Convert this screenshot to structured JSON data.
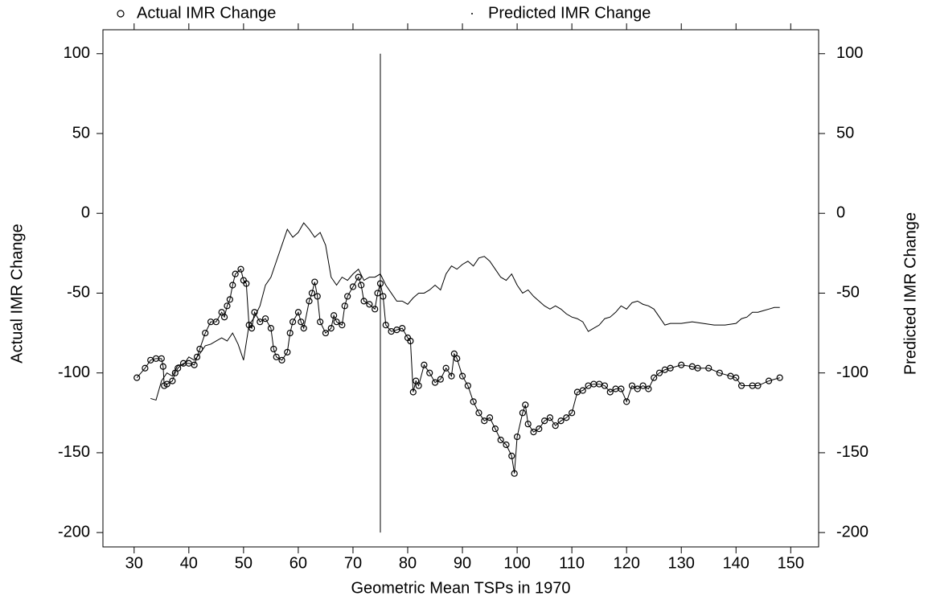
{
  "chart_data": {
    "type": "line",
    "x_label": "Geometric Mean TSPs in 1970",
    "y_label": "Actual IMR Change",
    "y2_label": "Predicted IMR Change",
    "xlim": [
      24.3,
      155.1
    ],
    "ylim": [
      -209,
      115
    ],
    "y2lim": [
      -209,
      115
    ],
    "xticks": [
      30,
      40,
      50,
      60,
      70,
      80,
      90,
      100,
      110,
      120,
      130,
      140,
      150
    ],
    "yticks": [
      -200,
      -150,
      -100,
      -50,
      0,
      50,
      100
    ],
    "y2ticks": [
      -200,
      -150,
      -100,
      -50,
      0,
      50,
      100
    ],
    "reference_line": {
      "x": 75,
      "ymin": -200,
      "ymax": 100
    },
    "series": [
      {
        "name": "Actual IMR Change",
        "color": "#000000",
        "marker": "circle",
        "axis": "y",
        "x": [
          30.5,
          32,
          33,
          34,
          35,
          35.3,
          35.5,
          36,
          37,
          37.5,
          38,
          39,
          40,
          41,
          41.5,
          42,
          43,
          44,
          45,
          46,
          46.5,
          47,
          47.5,
          48,
          48.5,
          49.5,
          50,
          50.5,
          51,
          51.5,
          52,
          53,
          54,
          55,
          55.5,
          56,
          57,
          58,
          58.5,
          59,
          60,
          60.5,
          61,
          62,
          62.5,
          63,
          63.5,
          64,
          65,
          66,
          66.5,
          67,
          68,
          68.5,
          69,
          70,
          71,
          71.5,
          72,
          73,
          74,
          74.5,
          75,
          75.5,
          76,
          77,
          78,
          79,
          80,
          80.5,
          81,
          81.5,
          82,
          83,
          84,
          85,
          86,
          87,
          88,
          88.5,
          89,
          90,
          91,
          92,
          93,
          94,
          95,
          96,
          97,
          98,
          99,
          99.5,
          100,
          101,
          101.5,
          102,
          103,
          104,
          105,
          106,
          107,
          108,
          109,
          110,
          111,
          112,
          113,
          114,
          115,
          116,
          117,
          118,
          119,
          120,
          121,
          122,
          123,
          124,
          125,
          126,
          127,
          128,
          130,
          132,
          133,
          135,
          137,
          139,
          140,
          141,
          143,
          144,
          146,
          148
        ],
        "values": [
          -103,
          -97,
          -92,
          -91,
          -91,
          -96,
          -108,
          -107,
          -105,
          -100,
          -97,
          -94,
          -94,
          -95,
          -90,
          -85,
          -75,
          -68,
          -68,
          -62,
          -65,
          -58,
          -54,
          -45,
          -38,
          -35,
          -42,
          -44,
          -70,
          -72,
          -62,
          -68,
          -66,
          -72,
          -85,
          -90,
          -92,
          -87,
          -75,
          -68,
          -62,
          -68,
          -72,
          -55,
          -50,
          -43,
          -52,
          -68,
          -75,
          -72,
          -64,
          -68,
          -70,
          -58,
          -52,
          -46,
          -40,
          -45,
          -55,
          -57,
          -60,
          -50,
          -44,
          -52,
          -70,
          -74,
          -73,
          -72,
          -78,
          -80,
          -112,
          -105,
          -108,
          -95,
          -100,
          -106,
          -104,
          -97,
          -102,
          -88,
          -91,
          -102,
          -108,
          -118,
          -125,
          -130,
          -128,
          -135,
          -142,
          -145,
          -152,
          -163,
          -140,
          -125,
          -120,
          -132,
          -137,
          -135,
          -130,
          -128,
          -133,
          -130,
          -128,
          -125,
          -112,
          -111,
          -108,
          -107,
          -107,
          -108,
          -112,
          -110,
          -110,
          -118,
          -108,
          -110,
          -108,
          -110,
          -103,
          -100,
          -98,
          -97,
          -95,
          -96,
          -97,
          -97,
          -100,
          -102,
          -103,
          -108,
          -108,
          -108,
          -105,
          -103
        ]
      },
      {
        "name": "Predicted IMR Change",
        "color": "#000000",
        "marker": "dot",
        "axis": "y2",
        "x": [
          33,
          34,
          35,
          36,
          37,
          38,
          39,
          40,
          41,
          42,
          43,
          44,
          45,
          46,
          47,
          48,
          49,
          50,
          51,
          52,
          53,
          54,
          55,
          56,
          57,
          58,
          59,
          60,
          61,
          62,
          63,
          64,
          65,
          66,
          67,
          68,
          69,
          70,
          71,
          72,
          73,
          74,
          75,
          76,
          77,
          78,
          79,
          80,
          81,
          82,
          83,
          84,
          85,
          86,
          87,
          88,
          89,
          90,
          91,
          92,
          93,
          94,
          95,
          96,
          97,
          98,
          99,
          100,
          101,
          102,
          103,
          104,
          105,
          106,
          107,
          108,
          109,
          110,
          111,
          112,
          113,
          114,
          115,
          116,
          117,
          118,
          119,
          120,
          121,
          122,
          123,
          124,
          125,
          126,
          127,
          128,
          130,
          132,
          134,
          136,
          138,
          140,
          141,
          142,
          143,
          144,
          145,
          146,
          147,
          148
        ],
        "values": [
          -116,
          -117,
          -105,
          -100,
          -102,
          -95,
          -95,
          -90,
          -92,
          -88,
          -83,
          -82,
          -80,
          -78,
          -80,
          -75,
          -82,
          -92,
          -70,
          -65,
          -58,
          -45,
          -40,
          -30,
          -20,
          -10,
          -15,
          -12,
          -6,
          -10,
          -15,
          -12,
          -20,
          -40,
          -45,
          -40,
          -42,
          -38,
          -35,
          -42,
          -40,
          -40,
          -38,
          -45,
          -50,
          -55,
          -55,
          -57,
          -53,
          -50,
          -50,
          -48,
          -45,
          -48,
          -38,
          -33,
          -35,
          -32,
          -30,
          -33,
          -28,
          -27,
          -30,
          -35,
          -40,
          -42,
          -38,
          -45,
          -50,
          -48,
          -52,
          -55,
          -58,
          -60,
          -58,
          -60,
          -63,
          -65,
          -66,
          -68,
          -74,
          -72,
          -70,
          -66,
          -65,
          -62,
          -58,
          -60,
          -56,
          -55,
          -57,
          -58,
          -60,
          -65,
          -70,
          -69,
          -69,
          -68,
          -69,
          -70,
          -70,
          -69,
          -66,
          -65,
          -62,
          -62,
          -61,
          -60,
          -59,
          -59
        ]
      }
    ]
  }
}
